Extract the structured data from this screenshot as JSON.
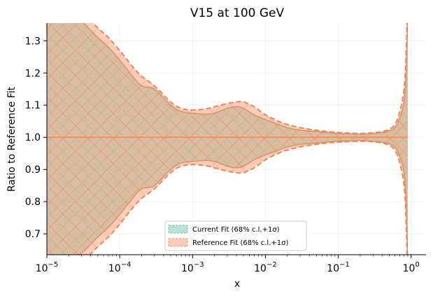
{
  "chart_data": {
    "type": "area",
    "title": "V15 at 100 GeV",
    "xlabel": "x",
    "ylabel": "Ratio to Reference Fit",
    "xscale": "log",
    "xlim": [
      1e-05,
      1.6
    ],
    "ylim": [
      0.635,
      1.355
    ],
    "grid": true,
    "legend_position": "bottom-center",
    "y_ticks": [
      "0.7",
      "0.8",
      "0.9",
      "1.0",
      "1.1",
      "1.2",
      "1.3"
    ],
    "x_ticks": [
      {
        "base": "10",
        "exp": "−5",
        "value": 1e-05
      },
      {
        "base": "10",
        "exp": "−4",
        "value": 0.0001
      },
      {
        "base": "10",
        "exp": "−3",
        "value": 0.001
      },
      {
        "base": "10",
        "exp": "−2",
        "value": 0.01
      },
      {
        "base": "10",
        "exp": "−1",
        "value": 0.1
      },
      {
        "base": "10",
        "exp": "0",
        "value": 1
      }
    ],
    "x": [
      1e-05,
      2e-05,
      3e-05,
      5e-05,
      7e-05,
      0.0001,
      0.00015,
      0.0002,
      0.0003,
      0.0005,
      0.0007,
      0.001,
      0.0015,
      0.002,
      0.003,
      0.004,
      0.005,
      0.007,
      0.01,
      0.015,
      0.02,
      0.03,
      0.05,
      0.07,
      0.1,
      0.15,
      0.2,
      0.3,
      0.4,
      0.5,
      0.6,
      0.7,
      0.8,
      0.85,
      0.9
    ],
    "series": [
      {
        "name": "Current Fit (68% c.l.+1σ)",
        "color": "#66c2a5",
        "upper": [
          1.43,
          1.38,
          1.36,
          1.31,
          1.28,
          1.24,
          1.19,
          1.16,
          1.15,
          1.1,
          1.08,
          1.075,
          1.072,
          1.075,
          1.09,
          1.095,
          1.09,
          1.07,
          1.055,
          1.04,
          1.03,
          1.022,
          1.018,
          1.015,
          1.012,
          1.011,
          1.01,
          1.012,
          1.015,
          1.02,
          1.03,
          1.06,
          1.11,
          1.2,
          1.4
        ],
        "lower": [
          0.57,
          0.62,
          0.64,
          0.69,
          0.72,
          0.76,
          0.81,
          0.84,
          0.85,
          0.9,
          0.92,
          0.925,
          0.928,
          0.925,
          0.91,
          0.905,
          0.91,
          0.93,
          0.945,
          0.96,
          0.97,
          0.978,
          0.982,
          0.985,
          0.988,
          0.989,
          0.99,
          0.988,
          0.985,
          0.98,
          0.97,
          0.94,
          0.89,
          0.8,
          0.6
        ]
      },
      {
        "name": "Reference Fit (68% c.l.+1σ)",
        "color": "#fc8d62",
        "central": 1.0,
        "upper": [
          1.47,
          1.42,
          1.39,
          1.34,
          1.31,
          1.27,
          1.22,
          1.19,
          1.16,
          1.11,
          1.09,
          1.085,
          1.088,
          1.095,
          1.105,
          1.11,
          1.11,
          1.095,
          1.07,
          1.05,
          1.04,
          1.03,
          1.022,
          1.018,
          1.015,
          1.013,
          1.012,
          1.014,
          1.018,
          1.025,
          1.04,
          1.08,
          1.15,
          1.25,
          1.45
        ],
        "lower": [
          0.53,
          0.58,
          0.61,
          0.66,
          0.69,
          0.73,
          0.78,
          0.81,
          0.84,
          0.89,
          0.91,
          0.915,
          0.912,
          0.905,
          0.895,
          0.89,
          0.89,
          0.905,
          0.93,
          0.95,
          0.96,
          0.97,
          0.978,
          0.982,
          0.985,
          0.987,
          0.988,
          0.986,
          0.982,
          0.975,
          0.96,
          0.92,
          0.85,
          0.75,
          0.55
        ]
      }
    ]
  }
}
